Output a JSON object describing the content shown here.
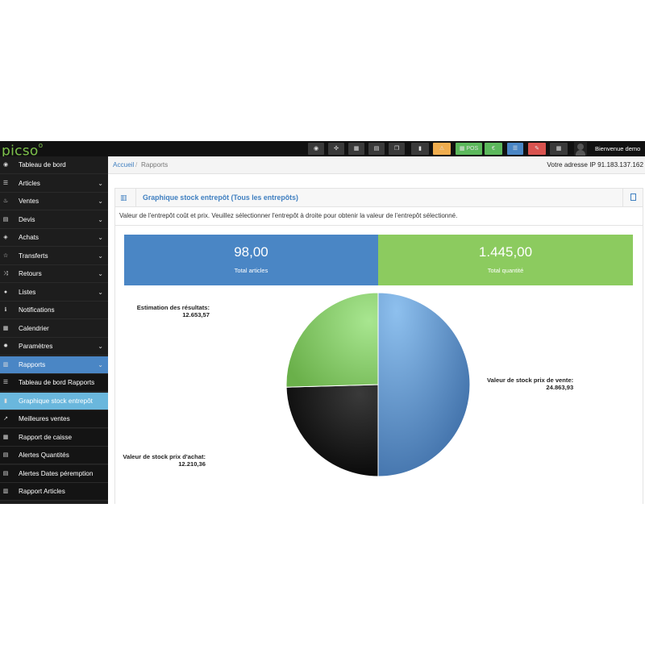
{
  "app": {
    "logo_text": "picso",
    "logo_sup": "o",
    "welcome": "Bienvenue demo",
    "ip_label": "Votre adresse IP 91.183.137.162"
  },
  "toolbar": {
    "pos_label": "POS",
    "euro_label": "€",
    "buttons": [
      {
        "name": "dashboard-icon",
        "glyph": "◉",
        "color": "#3a3a3a"
      },
      {
        "name": "settings-icon",
        "glyph": "✣",
        "color": "#3a3a3a"
      },
      {
        "name": "calculator-icon",
        "glyph": "▦",
        "color": "#3a3a3a"
      },
      {
        "name": "calendar-icon",
        "glyph": "▤",
        "color": "#3a3a3a"
      },
      {
        "name": "copy-icon",
        "glyph": "❐",
        "color": "#3a3a3a"
      },
      {
        "name": "flag-icon",
        "glyph": "▮",
        "color": "#3a3a3a"
      },
      {
        "name": "warning-icon",
        "glyph": "⚠",
        "color": "#f0ad4e"
      },
      {
        "name": "pos-button",
        "glyph": "",
        "color": "#5cb85c"
      },
      {
        "name": "euro-icon",
        "glyph": "",
        "color": "#5cb85c"
      },
      {
        "name": "list-icon",
        "glyph": "☰",
        "color": "#4a86c5"
      },
      {
        "name": "eraser-icon",
        "glyph": "✎",
        "color": "#d9534f"
      },
      {
        "name": "grid-icon",
        "glyph": "▦",
        "color": "#3a3a3a"
      }
    ]
  },
  "sidebar": {
    "items": [
      {
        "label": "Tableau de bord",
        "icon": "dashboard-icon",
        "glyph": "◉",
        "chevron": false,
        "state": "normal"
      },
      {
        "label": "Articles",
        "icon": "articles-icon",
        "glyph": "☰",
        "chevron": true,
        "state": "normal"
      },
      {
        "label": "Ventes",
        "icon": "thumbs-up-icon",
        "glyph": "♨",
        "chevron": true,
        "state": "normal"
      },
      {
        "label": "Devis",
        "icon": "quote-icon",
        "glyph": "▤",
        "chevron": true,
        "state": "normal"
      },
      {
        "label": "Achats",
        "icon": "tag-icon",
        "glyph": "◈",
        "chevron": true,
        "state": "normal"
      },
      {
        "label": "Transferts",
        "icon": "star-icon",
        "glyph": "☆",
        "chevron": true,
        "state": "normal"
      },
      {
        "label": "Retours",
        "icon": "shuffle-icon",
        "glyph": "⤨",
        "chevron": true,
        "state": "normal"
      },
      {
        "label": "Listes",
        "icon": "users-icon",
        "glyph": "●",
        "chevron": true,
        "state": "normal"
      },
      {
        "label": "Notifications",
        "icon": "info-icon",
        "glyph": "ℹ",
        "chevron": false,
        "state": "normal"
      },
      {
        "label": "Calendrier",
        "icon": "calendar-icon",
        "glyph": "▦",
        "chevron": false,
        "state": "normal"
      },
      {
        "label": "Paramètres",
        "icon": "gear-icon",
        "glyph": "✹",
        "chevron": true,
        "state": "normal"
      },
      {
        "label": "Rapports",
        "icon": "bar-chart-icon",
        "glyph": "▥",
        "chevron": true,
        "state": "active"
      },
      {
        "label": "Tableau de bord Rapports",
        "icon": "list-icon",
        "glyph": "☰",
        "chevron": false,
        "state": "sub"
      },
      {
        "label": "Graphique stock entrepôt",
        "icon": "document-icon",
        "glyph": "▮",
        "chevron": false,
        "state": "subactive"
      },
      {
        "label": "Meilleures ventes",
        "icon": "line-chart-icon",
        "glyph": "↗",
        "chevron": false,
        "state": "sub"
      },
      {
        "label": "Rapport de caisse",
        "icon": "grid-icon",
        "glyph": "▦",
        "chevron": false,
        "state": "sub"
      },
      {
        "label": "Alertes Quantités",
        "icon": "alert-icon",
        "glyph": "▤",
        "chevron": false,
        "state": "sub"
      },
      {
        "label": "Alertes Dates péremption",
        "icon": "alert-date-icon",
        "glyph": "▤",
        "chevron": false,
        "state": "sub"
      },
      {
        "label": "Rapport Articles",
        "icon": "barcode-icon",
        "glyph": "▥",
        "chevron": false,
        "state": "sub"
      }
    ]
  },
  "breadcrumb": {
    "home": "Accueil",
    "separator": "/",
    "current": "Rapports"
  },
  "panel": {
    "title": "Graphique stock entrepôt (Tous les entrepôts)",
    "description": "Valeur de l'entrepôt coût et prix. Veuillez sélectionner l'entrepôt à droite pour obtenir la valeur de l'entrepôt sélectionné."
  },
  "stats": {
    "total_articles_value": "98,00",
    "total_articles_label": "Total articles",
    "total_quantite_value": "1.445,00",
    "total_quantite_label": "Total quantité"
  },
  "colors": {
    "accent_blue": "#4a86c5",
    "accent_green": "#8ccb5f",
    "sidebar_bg": "#1d1d1d",
    "submenu_active": "#6ab7dd"
  },
  "chart_data": {
    "type": "pie",
    "slices": [
      {
        "label": "Valeur de stock prix de vente:",
        "value_text": "24.863,93",
        "value": 24863.93,
        "color": "#4a86c5"
      },
      {
        "label": "Valeur de stock prix d'achat:",
        "value_text": "12.210,36",
        "value": 12210.36,
        "color": "#1c1c1c"
      },
      {
        "label": "Estimation des résultats:",
        "value_text": "12.653,57",
        "value": 12653.57,
        "color": "#8ccb5f"
      }
    ]
  }
}
